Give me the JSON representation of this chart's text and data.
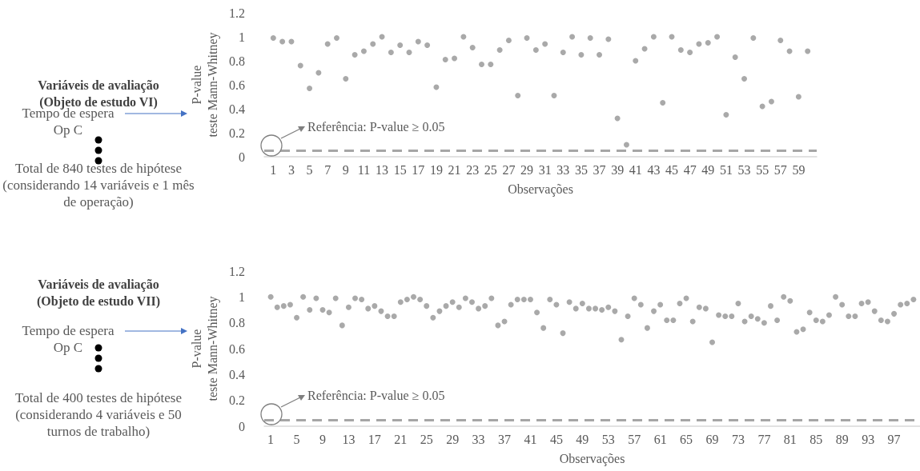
{
  "chart_data": [
    {
      "type": "scatter",
      "xlabel": "Observações",
      "ylabel": "P-value\nteste Mann-Whitney",
      "annotations": [
        "Variáveis de avaliação\n(Objeto de estudo VI)",
        "Tempo de espera Op C",
        "Total de 840 testes de hipótese (considerando 14 variáveis e 1 mês de operação)"
      ],
      "x": [
        1,
        2,
        3,
        4,
        5,
        6,
        7,
        8,
        9,
        10,
        11,
        12,
        13,
        14,
        15,
        16,
        17,
        18,
        19,
        20,
        21,
        22,
        23,
        24,
        25,
        26,
        27,
        28,
        29,
        30,
        31,
        32,
        33,
        34,
        35,
        36,
        37,
        38,
        39,
        40,
        41,
        42,
        43,
        44,
        45,
        46,
        47,
        48,
        49,
        50,
        51,
        52,
        53,
        54,
        55,
        56,
        57,
        58,
        59,
        60
      ],
      "xlim": [
        0,
        61
      ],
      "xticks": [
        1,
        3,
        5,
        7,
        9,
        11,
        13,
        15,
        17,
        19,
        21,
        23,
        25,
        27,
        29,
        31,
        33,
        35,
        37,
        39,
        41,
        43,
        45,
        47,
        49,
        51,
        53,
        55,
        57,
        59
      ],
      "series": [
        {
          "color": "#949494",
          "values": [
            0.99,
            0.96,
            0.96,
            0.76,
            0.57,
            0.7,
            0.94,
            0.99,
            0.65,
            0.85,
            0.88,
            0.94,
            1.0,
            0.87,
            0.93,
            0.87,
            0.96,
            0.93,
            0.58,
            0.81,
            0.82,
            1.0,
            0.91,
            0.77,
            0.77,
            0.89,
            0.97,
            0.51,
            0.99,
            0.89,
            0.94,
            0.51,
            0.87,
            1.0,
            0.85,
            0.99,
            0.85,
            0.98,
            0.32,
            0.1,
            0.8,
            0.9,
            1.0,
            0.45,
            1.0,
            0.89,
            0.87,
            0.94,
            0.95,
            1.0,
            0.35,
            0.83,
            0.65,
            0.99,
            0.42,
            0.46,
            0.97,
            0.88,
            0.5,
            0.88
          ]
        }
      ],
      "ylim": [
        0,
        1.2
      ],
      "yticks": [
        0,
        0.2,
        0.4,
        0.6,
        0.8,
        1,
        1.2
      ],
      "marker": "circle",
      "ref_lines": [
        {
          "axis": "y",
          "value": 0.05,
          "label": "Referência: P-value ≥ 0.05",
          "color": "#a6a6a6",
          "line_style": "dashed"
        }
      ]
    },
    {
      "type": "scatter",
      "xlabel": "Observações",
      "ylabel": "P-value\nteste Mann-Whitney",
      "annotations": [
        "Variáveis de avaliação\n(Objeto de estudo VII)",
        "Tempo de espera Op C",
        "Total de 400 testes de hipótese (considerando 4 variáveis e 50 turnos de trabalho)"
      ],
      "x": [
        1,
        2,
        3,
        4,
        5,
        6,
        7,
        8,
        9,
        10,
        11,
        12,
        13,
        14,
        15,
        16,
        17,
        18,
        19,
        20,
        21,
        22,
        23,
        24,
        25,
        26,
        27,
        28,
        29,
        30,
        31,
        32,
        33,
        34,
        35,
        36,
        37,
        38,
        39,
        40,
        41,
        42,
        43,
        44,
        45,
        46,
        47,
        48,
        49,
        50,
        51,
        52,
        53,
        54,
        55,
        56,
        57,
        58,
        59,
        60,
        61,
        62,
        63,
        64,
        65,
        66,
        67,
        68,
        69,
        70,
        71,
        72,
        73,
        74,
        75,
        76,
        77,
        78,
        79,
        80,
        81,
        82,
        83,
        84,
        85,
        86,
        87,
        88,
        89,
        90,
        91,
        92,
        93,
        94,
        95,
        96,
        97,
        98,
        99,
        100
      ],
      "xlim": [
        0,
        101
      ],
      "xticks": [
        1,
        5,
        9,
        13,
        17,
        21,
        25,
        29,
        33,
        37,
        41,
        45,
        49,
        53,
        57,
        61,
        65,
        69,
        73,
        77,
        81,
        85,
        89,
        93,
        97
      ],
      "series": [
        {
          "color": "#949494",
          "values": [
            1.0,
            0.92,
            0.93,
            0.94,
            0.84,
            1.0,
            0.9,
            0.99,
            0.9,
            0.88,
            0.99,
            0.78,
            0.92,
            0.99,
            0.98,
            0.91,
            0.93,
            0.89,
            0.85,
            0.85,
            0.96,
            0.98,
            1.0,
            0.98,
            0.93,
            0.84,
            0.89,
            0.93,
            0.96,
            0.92,
            0.99,
            0.96,
            0.91,
            0.93,
            0.99,
            0.78,
            0.81,
            0.94,
            0.98,
            0.98,
            0.98,
            0.88,
            0.76,
            0.98,
            0.94,
            0.72,
            0.96,
            0.91,
            0.95,
            0.91,
            0.91,
            0.9,
            0.92,
            0.89,
            0.67,
            0.85,
            0.99,
            0.94,
            0.76,
            0.89,
            0.94,
            0.82,
            0.82,
            0.95,
            0.99,
            0.81,
            0.92,
            0.91,
            0.65,
            0.86,
            0.85,
            0.85,
            0.95,
            0.81,
            0.85,
            0.83,
            0.8,
            0.93,
            0.82,
            1.0,
            0.97,
            0.73,
            0.75,
            0.88,
            0.82,
            0.81,
            0.86,
            1.0,
            0.94,
            0.85,
            0.85,
            0.95,
            0.96,
            0.89,
            0.82,
            0.81,
            0.87,
            0.94,
            0.95,
            0.98
          ]
        }
      ],
      "ylim": [
        0,
        1.2
      ],
      "yticks": [
        0,
        0.2,
        0.4,
        0.6,
        0.8,
        1,
        1.2
      ],
      "marker": "circle",
      "ref_lines": [
        {
          "axis": "y",
          "value": 0.05,
          "label": "Referência: P-value ≥ 0.05",
          "color": "#a6a6a6",
          "line_style": "dashed"
        }
      ]
    }
  ]
}
